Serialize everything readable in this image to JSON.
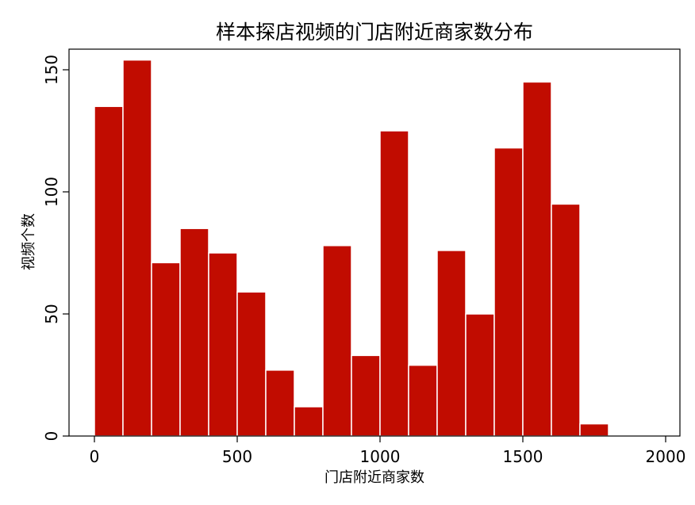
{
  "chart_data": {
    "type": "bar",
    "title": "样本探店视频的门店附近商家数分布",
    "xlabel": "门店附近商家数",
    "ylabel": "视频个数",
    "xlim": [
      0,
      2000
    ],
    "ylim": [
      0,
      150
    ],
    "x_ticks": [
      0,
      500,
      1000,
      1500,
      2000
    ],
    "y_ticks": [
      0,
      50,
      100,
      150
    ],
    "bin_width": 100,
    "bins": [
      {
        "start": 0,
        "end": 100,
        "count": 135
      },
      {
        "start": 100,
        "end": 200,
        "count": 154
      },
      {
        "start": 200,
        "end": 300,
        "count": 71
      },
      {
        "start": 300,
        "end": 400,
        "count": 85
      },
      {
        "start": 400,
        "end": 500,
        "count": 75
      },
      {
        "start": 500,
        "end": 600,
        "count": 59
      },
      {
        "start": 600,
        "end": 700,
        "count": 27
      },
      {
        "start": 700,
        "end": 800,
        "count": 12
      },
      {
        "start": 800,
        "end": 900,
        "count": 78
      },
      {
        "start": 900,
        "end": 1000,
        "count": 33
      },
      {
        "start": 1000,
        "end": 1100,
        "count": 125
      },
      {
        "start": 1100,
        "end": 1200,
        "count": 29
      },
      {
        "start": 1200,
        "end": 1300,
        "count": 76
      },
      {
        "start": 1300,
        "end": 1400,
        "count": 50
      },
      {
        "start": 1400,
        "end": 1500,
        "count": 118
      },
      {
        "start": 1500,
        "end": 1600,
        "count": 145
      },
      {
        "start": 1600,
        "end": 1700,
        "count": 95
      },
      {
        "start": 1700,
        "end": 1800,
        "count": 5
      }
    ],
    "bar_color": "#c10c00",
    "bar_edge_color": "#ffffff",
    "grid": false,
    "legend": "none"
  }
}
